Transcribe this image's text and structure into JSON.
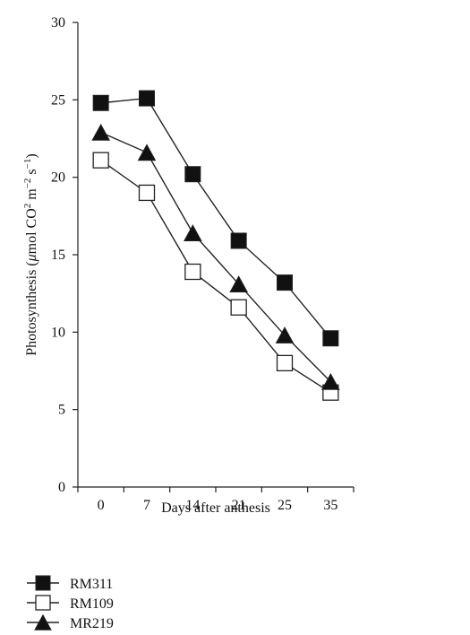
{
  "chart_data": {
    "type": "line",
    "title": "",
    "xlabel": "Days after anthesis",
    "ylabel": {
      "prefix": "Photosynthesis (",
      "mu": "μ",
      "unit_main": "mol CO",
      "sup1": "2",
      "unit_m": " m",
      "sup2": "−2",
      "unit_s": " s",
      "sup3": "−1",
      "suffix": ")"
    },
    "categories": [
      "0",
      "7",
      "14",
      "21",
      "25",
      "35"
    ],
    "ylim": [
      0,
      30
    ],
    "yticks": [
      "0",
      "5",
      "10",
      "15",
      "20",
      "25",
      "30"
    ],
    "grid": false,
    "legend_position": "bottom-left",
    "series": [
      {
        "name": "RM311",
        "marker": "filled-square",
        "values": [
          24.8,
          25.1,
          20.2,
          15.9,
          13.2,
          9.6
        ]
      },
      {
        "name": "RM109",
        "marker": "open-square",
        "values": [
          21.1,
          19.0,
          13.9,
          11.6,
          8.0,
          6.1
        ]
      },
      {
        "name": "MR219",
        "marker": "filled-triangle",
        "values": [
          22.9,
          21.6,
          16.4,
          13.1,
          9.8,
          6.8
        ]
      }
    ],
    "colors": {
      "line": "#222222",
      "marker_fill": "#111111",
      "open_fill": "#ffffff"
    }
  }
}
